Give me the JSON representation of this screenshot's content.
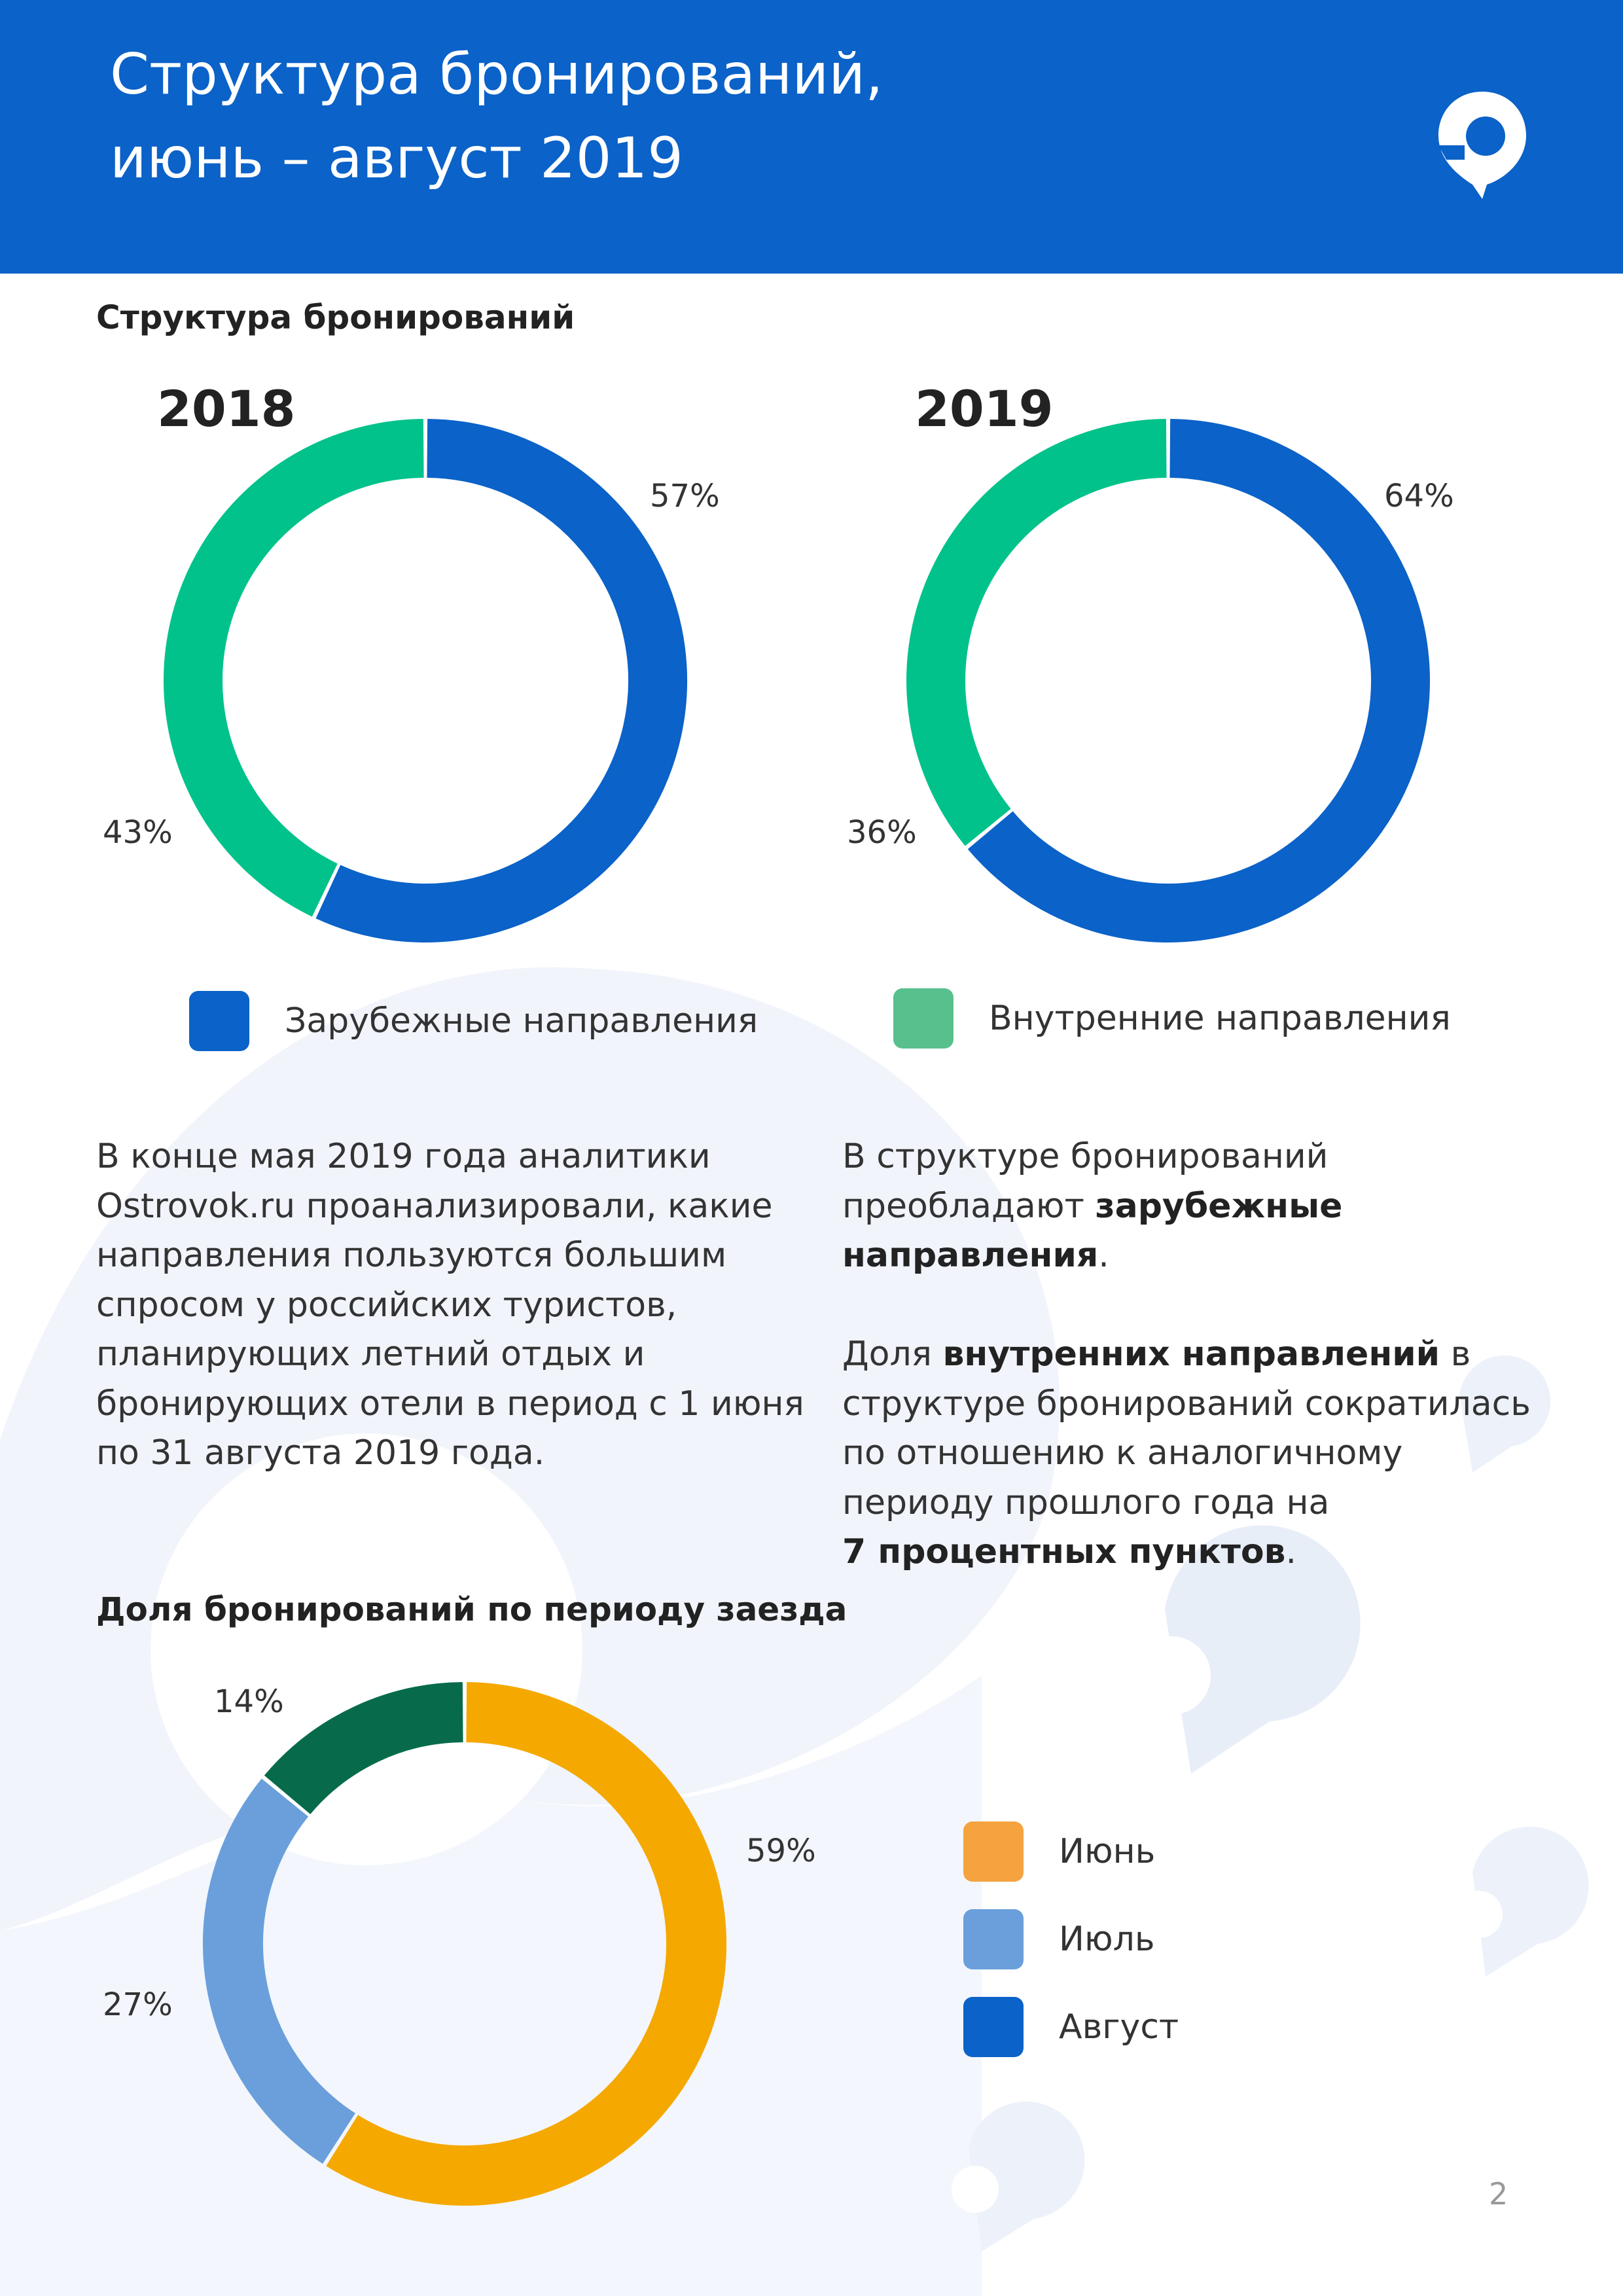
{
  "header": {
    "title_line1": "Структура бронирований,",
    "title_line2": "июнь – август 2019",
    "logo_icon": "ostrovok-pin-logo-icon"
  },
  "section1": {
    "title": "Структура бронирований"
  },
  "section2": {
    "title": "Доля бронирований по периоду заезда"
  },
  "chart_data": [
    {
      "type": "pie",
      "title": "2018",
      "categories": [
        "Зарубежные направления",
        "Внутренние направления"
      ],
      "values": [
        57,
        43
      ],
      "labels": [
        "57%",
        "43%"
      ],
      "colors": [
        "#0b62c8",
        "#00c28a"
      ]
    },
    {
      "type": "pie",
      "title": "2019",
      "categories": [
        "Зарубежные направления",
        "Внутренние направления"
      ],
      "values": [
        64,
        36
      ],
      "labels": [
        "64%",
        "36%"
      ],
      "colors": [
        "#0b62c8",
        "#00c28a"
      ]
    },
    {
      "type": "pie",
      "title": "Доля бронирований по периоду заезда",
      "categories": [
        "Июнь",
        "Июль",
        "Август"
      ],
      "values": [
        59,
        27,
        14
      ],
      "labels": [
        "59%",
        "27%",
        "14%"
      ],
      "colors": [
        "#f5a800",
        "#6a9fdc",
        "#076b4b"
      ]
    }
  ],
  "legend_top": [
    {
      "label": "Зарубежные направления",
      "color": "#0b62c8"
    },
    {
      "label": "Внутренние направления",
      "color": "#58c08c"
    }
  ],
  "legend_bottom": [
    {
      "label": "Июнь",
      "color": "#f4a33f"
    },
    {
      "label": "Июль",
      "color": "#6a9fdc"
    },
    {
      "label": "Август",
      "color": "#0b62c8"
    }
  ],
  "text_left": {
    "line1": "В конце мая 2019 года аналитики",
    "line2": "Ostrovok.ru проанализировали, какие",
    "line3": "направления пользуются большим",
    "line4": "спросом у российских туристов,",
    "line5": "планирующих летний отдых и",
    "line6": "бронирующих отели в период с 1 июня",
    "line7": "по 31 августа 2019 года."
  },
  "text_right": {
    "p1_line1": "В структуре бронирований",
    "p1_line2_a": "преобладают ",
    "p1_line2_b": "зарубежные",
    "p1_line3_b": "направления",
    "p1_line3_c": ".",
    "p2_line1_a": "Доля ",
    "p2_line1_b": "внутренних направлений",
    "p2_line1_c": " в",
    "p2_line2": "структуре бронирований сократилась",
    "p2_line3": "по отношению к аналогичному",
    "p2_line4": "периоду прошлого года на",
    "p2_line5_b": "7 процентных пунктов",
    "p2_line5_c": "."
  },
  "page_number": "2"
}
